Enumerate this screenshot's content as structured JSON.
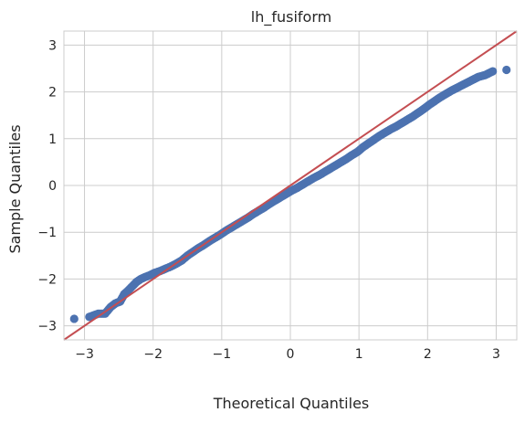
{
  "chart_data": {
    "type": "scatter",
    "title": "lh_fusiform",
    "xlabel": "Theoretical Quantiles",
    "ylabel": "Sample Quantiles",
    "xlim": [
      -3.3,
      3.3
    ],
    "ylim": [
      -3.3,
      3.3
    ],
    "xticks": [
      -3,
      -2,
      -1,
      0,
      1,
      2,
      3
    ],
    "yticks": [
      -3,
      -2,
      -1,
      0,
      1,
      2,
      3
    ],
    "grid": true,
    "marker_color": "#4c72b0",
    "reference_line_color": "#c44e52",
    "reference_line": {
      "slope": 1,
      "intercept": 0
    },
    "series": [
      {
        "points": [
          [
            -3.15,
            -2.85
          ],
          [
            -2.93,
            -2.81
          ],
          [
            -2.8,
            -2.74
          ],
          [
            -2.7,
            -2.74
          ],
          [
            -2.62,
            -2.6
          ],
          [
            -2.55,
            -2.52
          ],
          [
            -2.48,
            -2.48
          ],
          [
            -2.42,
            -2.32
          ],
          [
            -2.36,
            -2.24
          ],
          [
            -2.3,
            -2.15
          ],
          [
            -2.24,
            -2.06
          ],
          [
            -2.18,
            -2.0
          ],
          [
            -2.12,
            -1.96
          ],
          [
            -2.05,
            -1.92
          ],
          [
            -1.98,
            -1.87
          ],
          [
            -1.9,
            -1.83
          ],
          [
            -1.82,
            -1.78
          ],
          [
            -1.74,
            -1.73
          ],
          [
            -1.66,
            -1.67
          ],
          [
            -1.58,
            -1.6
          ],
          [
            -1.5,
            -1.5
          ],
          [
            -1.42,
            -1.42
          ],
          [
            -1.34,
            -1.34
          ],
          [
            -1.26,
            -1.27
          ],
          [
            -1.18,
            -1.19
          ],
          [
            -1.1,
            -1.12
          ],
          [
            -1.02,
            -1.05
          ],
          [
            -0.94,
            -0.97
          ],
          [
            -0.86,
            -0.9
          ],
          [
            -0.78,
            -0.83
          ],
          [
            -0.7,
            -0.76
          ],
          [
            -0.62,
            -0.69
          ],
          [
            -0.54,
            -0.61
          ],
          [
            -0.46,
            -0.54
          ],
          [
            -0.38,
            -0.47
          ],
          [
            -0.3,
            -0.39
          ],
          [
            -0.22,
            -0.32
          ],
          [
            -0.14,
            -0.25
          ],
          [
            -0.06,
            -0.18
          ],
          [
            0.02,
            -0.11
          ],
          [
            0.1,
            -0.05
          ],
          [
            0.18,
            0.02
          ],
          [
            0.26,
            0.09
          ],
          [
            0.34,
            0.16
          ],
          [
            0.42,
            0.22
          ],
          [
            0.5,
            0.29
          ],
          [
            0.58,
            0.36
          ],
          [
            0.66,
            0.43
          ],
          [
            0.74,
            0.5
          ],
          [
            0.82,
            0.57
          ],
          [
            0.9,
            0.65
          ],
          [
            0.98,
            0.72
          ],
          [
            1.06,
            0.82
          ],
          [
            1.14,
            0.9
          ],
          [
            1.22,
            0.98
          ],
          [
            1.3,
            1.06
          ],
          [
            1.38,
            1.13
          ],
          [
            1.46,
            1.2
          ],
          [
            1.54,
            1.26
          ],
          [
            1.62,
            1.33
          ],
          [
            1.7,
            1.4
          ],
          [
            1.78,
            1.47
          ],
          [
            1.86,
            1.55
          ],
          [
            1.94,
            1.63
          ],
          [
            2.02,
            1.72
          ],
          [
            2.1,
            1.8
          ],
          [
            2.18,
            1.88
          ],
          [
            2.26,
            1.95
          ],
          [
            2.34,
            2.02
          ],
          [
            2.42,
            2.08
          ],
          [
            2.5,
            2.14
          ],
          [
            2.58,
            2.2
          ],
          [
            2.66,
            2.26
          ],
          [
            2.74,
            2.32
          ],
          [
            2.84,
            2.36
          ],
          [
            2.95,
            2.44
          ],
          [
            3.15,
            2.47
          ]
        ]
      }
    ]
  }
}
